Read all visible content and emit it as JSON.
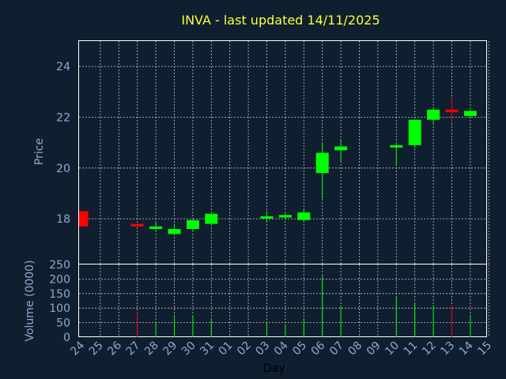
{
  "chart_data": {
    "type": "candlestick",
    "title": "INVA - last updated 14/11/2025",
    "xlabel": "Day",
    "price_ylabel": "Price",
    "volume_ylabel": "Volume (0000)",
    "price_yticks": [
      "18",
      "20",
      "22",
      "24"
    ],
    "price_ylim": [
      16.2,
      25.0
    ],
    "volume_yticks": [
      "0",
      "50",
      "100",
      "150",
      "200",
      "250"
    ],
    "volume_ylim": [
      0,
      250
    ],
    "grid": true,
    "colors": {
      "background": "#0f1f30",
      "up": "#00ff00",
      "down": "#ff0000",
      "title": "#ffff33",
      "axis_text": "#8faacc",
      "grid": "#ffffff"
    },
    "x_ticks": [
      "24",
      "25",
      "26",
      "27",
      "28",
      "29",
      "30",
      "31",
      "01",
      "02",
      "03",
      "04",
      "05",
      "06",
      "07",
      "08",
      "09",
      "10",
      "11",
      "12",
      "13",
      "14",
      "15"
    ],
    "candles": [
      {
        "day": "24",
        "open": 18.3,
        "high": 18.3,
        "low": 17.7,
        "close": 17.7,
        "volume": 0
      },
      {
        "day": "27",
        "open": 17.8,
        "high": 17.8,
        "low": 17.7,
        "close": 17.7,
        "volume": 85
      },
      {
        "day": "28",
        "open": 17.6,
        "high": 17.9,
        "low": 17.5,
        "close": 17.7,
        "volume": 50
      },
      {
        "day": "29",
        "open": 17.4,
        "high": 17.8,
        "low": 17.4,
        "close": 17.6,
        "volume": 70
      },
      {
        "day": "30",
        "open": 17.6,
        "high": 17.95,
        "low": 17.5,
        "close": 17.95,
        "volume": 75
      },
      {
        "day": "31",
        "open": 17.8,
        "high": 18.2,
        "low": 17.8,
        "close": 18.2,
        "volume": 65
      },
      {
        "day": "03",
        "open": 18.05,
        "high": 18.3,
        "low": 17.9,
        "close": 18.1,
        "volume": 50
      },
      {
        "day": "04",
        "open": 18.05,
        "high": 18.2,
        "low": 17.95,
        "close": 18.15,
        "volume": 45
      },
      {
        "day": "05",
        "open": 17.95,
        "high": 18.35,
        "low": 17.9,
        "close": 18.25,
        "volume": 65
      },
      {
        "day": "06",
        "open": 19.8,
        "high": 21.0,
        "low": 18.8,
        "close": 20.6,
        "volume": 210
      },
      {
        "day": "07",
        "open": 20.7,
        "high": 21.1,
        "low": 20.25,
        "close": 20.85,
        "volume": 105
      },
      {
        "day": "10",
        "open": 20.85,
        "high": 20.95,
        "low": 20.15,
        "close": 20.9,
        "volume": 140
      },
      {
        "day": "11",
        "open": 20.9,
        "high": 21.9,
        "low": 20.8,
        "close": 21.9,
        "volume": 120
      },
      {
        "day": "12",
        "open": 21.9,
        "high": 22.4,
        "low": 21.75,
        "close": 22.3,
        "volume": 110
      },
      {
        "day": "13",
        "open": 22.3,
        "high": 22.8,
        "low": 21.85,
        "close": 22.2,
        "volume": 110
      },
      {
        "day": "14",
        "open": 22.05,
        "high": 22.3,
        "low": 21.95,
        "close": 22.25,
        "volume": 75
      }
    ]
  }
}
